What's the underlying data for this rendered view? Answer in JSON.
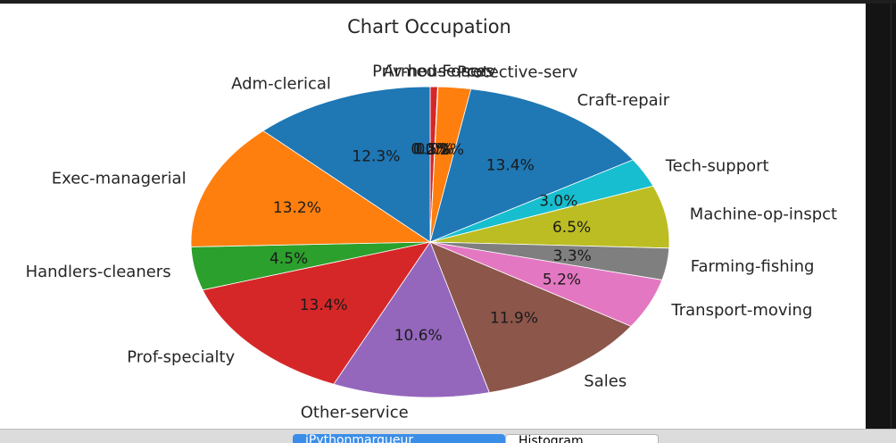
{
  "chart_data": {
    "type": "pie",
    "title": "Chart Occupation",
    "categories": [
      "Priv-house-serv",
      "Armed-Forces",
      "Protective-serv",
      "Craft-repair",
      "Tech-support",
      "Machine-op-inspct",
      "Farming-fishing",
      "Transport-moving",
      "Sales",
      "Other-service",
      "Prof-specialty",
      "Handlers-cleaners",
      "Exec-managerial",
      "Adm-clerical",
      "?"
    ],
    "values": [
      0.5,
      0.03,
      2.2,
      13.4,
      3.0,
      6.5,
      3.3,
      5.2,
      11.9,
      10.6,
      13.4,
      4.5,
      13.2,
      12.3,
      0.0
    ],
    "pct_labels": [
      "0.5%",
      "0.0%",
      "2.2%",
      "13.4%",
      "3.0%",
      "6.5%",
      "3.3%",
      "5.2%",
      "11.9%",
      "10.6%",
      "13.4%",
      "4.5%",
      "13.2%",
      "12.3%",
      "0.0%"
    ],
    "slice_labels": [
      "Priv-house-serv",
      "Armed-Forces",
      "Protective-serv",
      "Craft-repair",
      "Tech-support",
      "Machine-op-inspct",
      "Farming-fishing",
      "Transport-moving",
      "Sales",
      "Other-service",
      "Prof-specialty",
      "Handlers-cleaners",
      "Exec-managerial",
      "Adm-clerical",
      ""
    ],
    "colors": [
      "#d62728",
      "#9467bd",
      "#ff7f0e",
      "#1f77b4",
      "#17becf",
      "#bcbd22",
      "#7f7f7f",
      "#e377c2",
      "#8c564b",
      "#9467bd",
      "#d62728",
      "#2ca02c",
      "#ff7f0e",
      "#1f77b4",
      "#1f77b4"
    ],
    "start_angle_deg": 90,
    "direction": "clockwise"
  },
  "tabs": {
    "active_label": "iPythonmarqueur",
    "histogram_label": "Histogram"
  }
}
